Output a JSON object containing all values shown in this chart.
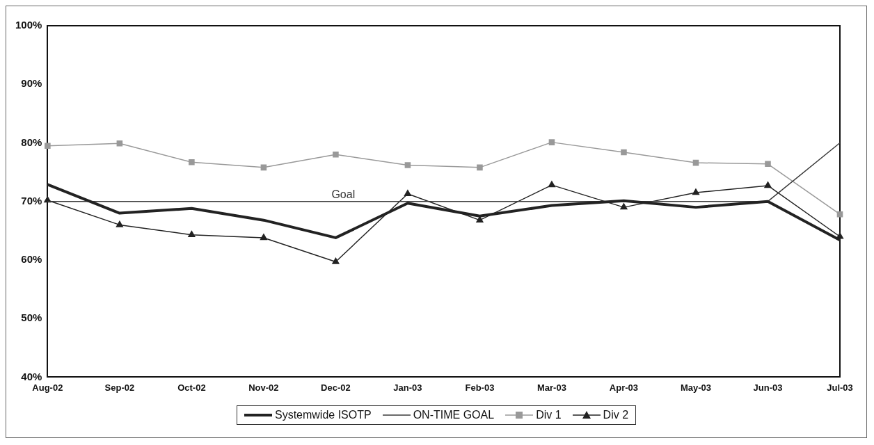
{
  "chart_data": {
    "type": "line",
    "categories": [
      "Aug-02",
      "Sep-02",
      "Oct-02",
      "Nov-02",
      "Dec-02",
      "Jan-03",
      "Feb-03",
      "Mar-03",
      "Apr-03",
      "May-03",
      "Jun-03",
      "Jul-03"
    ],
    "series": [
      {
        "name": "Systemwide ISOTP",
        "color": "#222222",
        "marker": "none",
        "values": [
          72.9,
          68.0,
          68.8,
          66.8,
          63.8,
          69.7,
          67.5,
          69.3,
          70.1,
          69.0,
          70.0,
          63.4
        ]
      },
      {
        "name": "ON-TIME GOAL",
        "color": "#3a3a3a",
        "marker": "none",
        "values": [
          70,
          70,
          70,
          70,
          70,
          70,
          70,
          70,
          70,
          70,
          70,
          80
        ]
      },
      {
        "name": "Div 1",
        "color": "#999999",
        "marker": "square",
        "values": [
          79.5,
          79.9,
          76.7,
          75.8,
          78.0,
          76.2,
          75.8,
          80.1,
          78.4,
          76.6,
          76.4,
          67.8
        ]
      },
      {
        "name": "Div 2",
        "color": "#222222",
        "marker": "triangle",
        "values": [
          70.2,
          66.0,
          64.3,
          63.8,
          59.7,
          71.3,
          66.8,
          72.8,
          69.0,
          71.5,
          72.7,
          64.0
        ]
      }
    ],
    "ylim": [
      40,
      100
    ],
    "yticks": [
      {
        "value": 40,
        "label": "40%"
      },
      {
        "value": 50,
        "label": "50%"
      },
      {
        "value": 60,
        "label": "60%"
      },
      {
        "value": 70,
        "label": "70%"
      },
      {
        "value": 80,
        "label": "80%"
      },
      {
        "value": 90,
        "label": "90%"
      },
      {
        "value": 100,
        "label": "100%"
      }
    ],
    "grid": false,
    "legend": "bottom",
    "annotations": [
      {
        "text": "Goal",
        "x": "Dec-02",
        "y": 70
      }
    ]
  }
}
